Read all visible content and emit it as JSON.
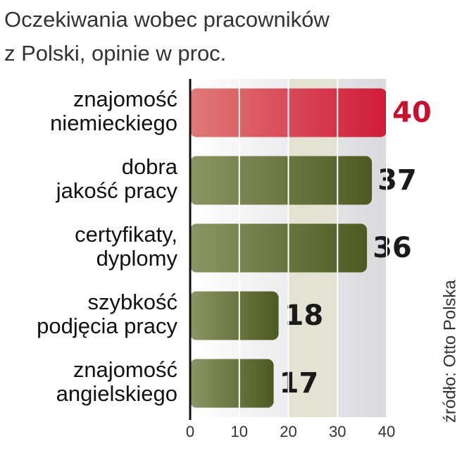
{
  "chart_data": {
    "type": "barh",
    "title": [
      "Oczekiwania wobec pracowników",
      "z Polski, opinie w proc."
    ],
    "source": "źródło: Otto Polska",
    "categories": [
      [
        "znajomość",
        "niemieckiego"
      ],
      [
        "dobra",
        "jakość pracy"
      ],
      [
        "certyfikaty,",
        "dyplomy"
      ],
      [
        "szybkość",
        "podjęcia pracy"
      ],
      [
        "znajomość",
        "angielskiego"
      ]
    ],
    "values": [
      40,
      37,
      36,
      18,
      17
    ],
    "colors": [
      "#d6293f",
      "#5b6a2e",
      "#5b6a2e",
      "#5b6a2e",
      "#5b6a2e"
    ],
    "label_colors": [
      "#c8102e",
      "#1a1a1a",
      "#1a1a1a",
      "#1a1a1a",
      "#1a1a1a"
    ],
    "xlim": [
      0,
      40
    ],
    "xticks": [
      0,
      10,
      20,
      30,
      40
    ],
    "grid": true
  }
}
